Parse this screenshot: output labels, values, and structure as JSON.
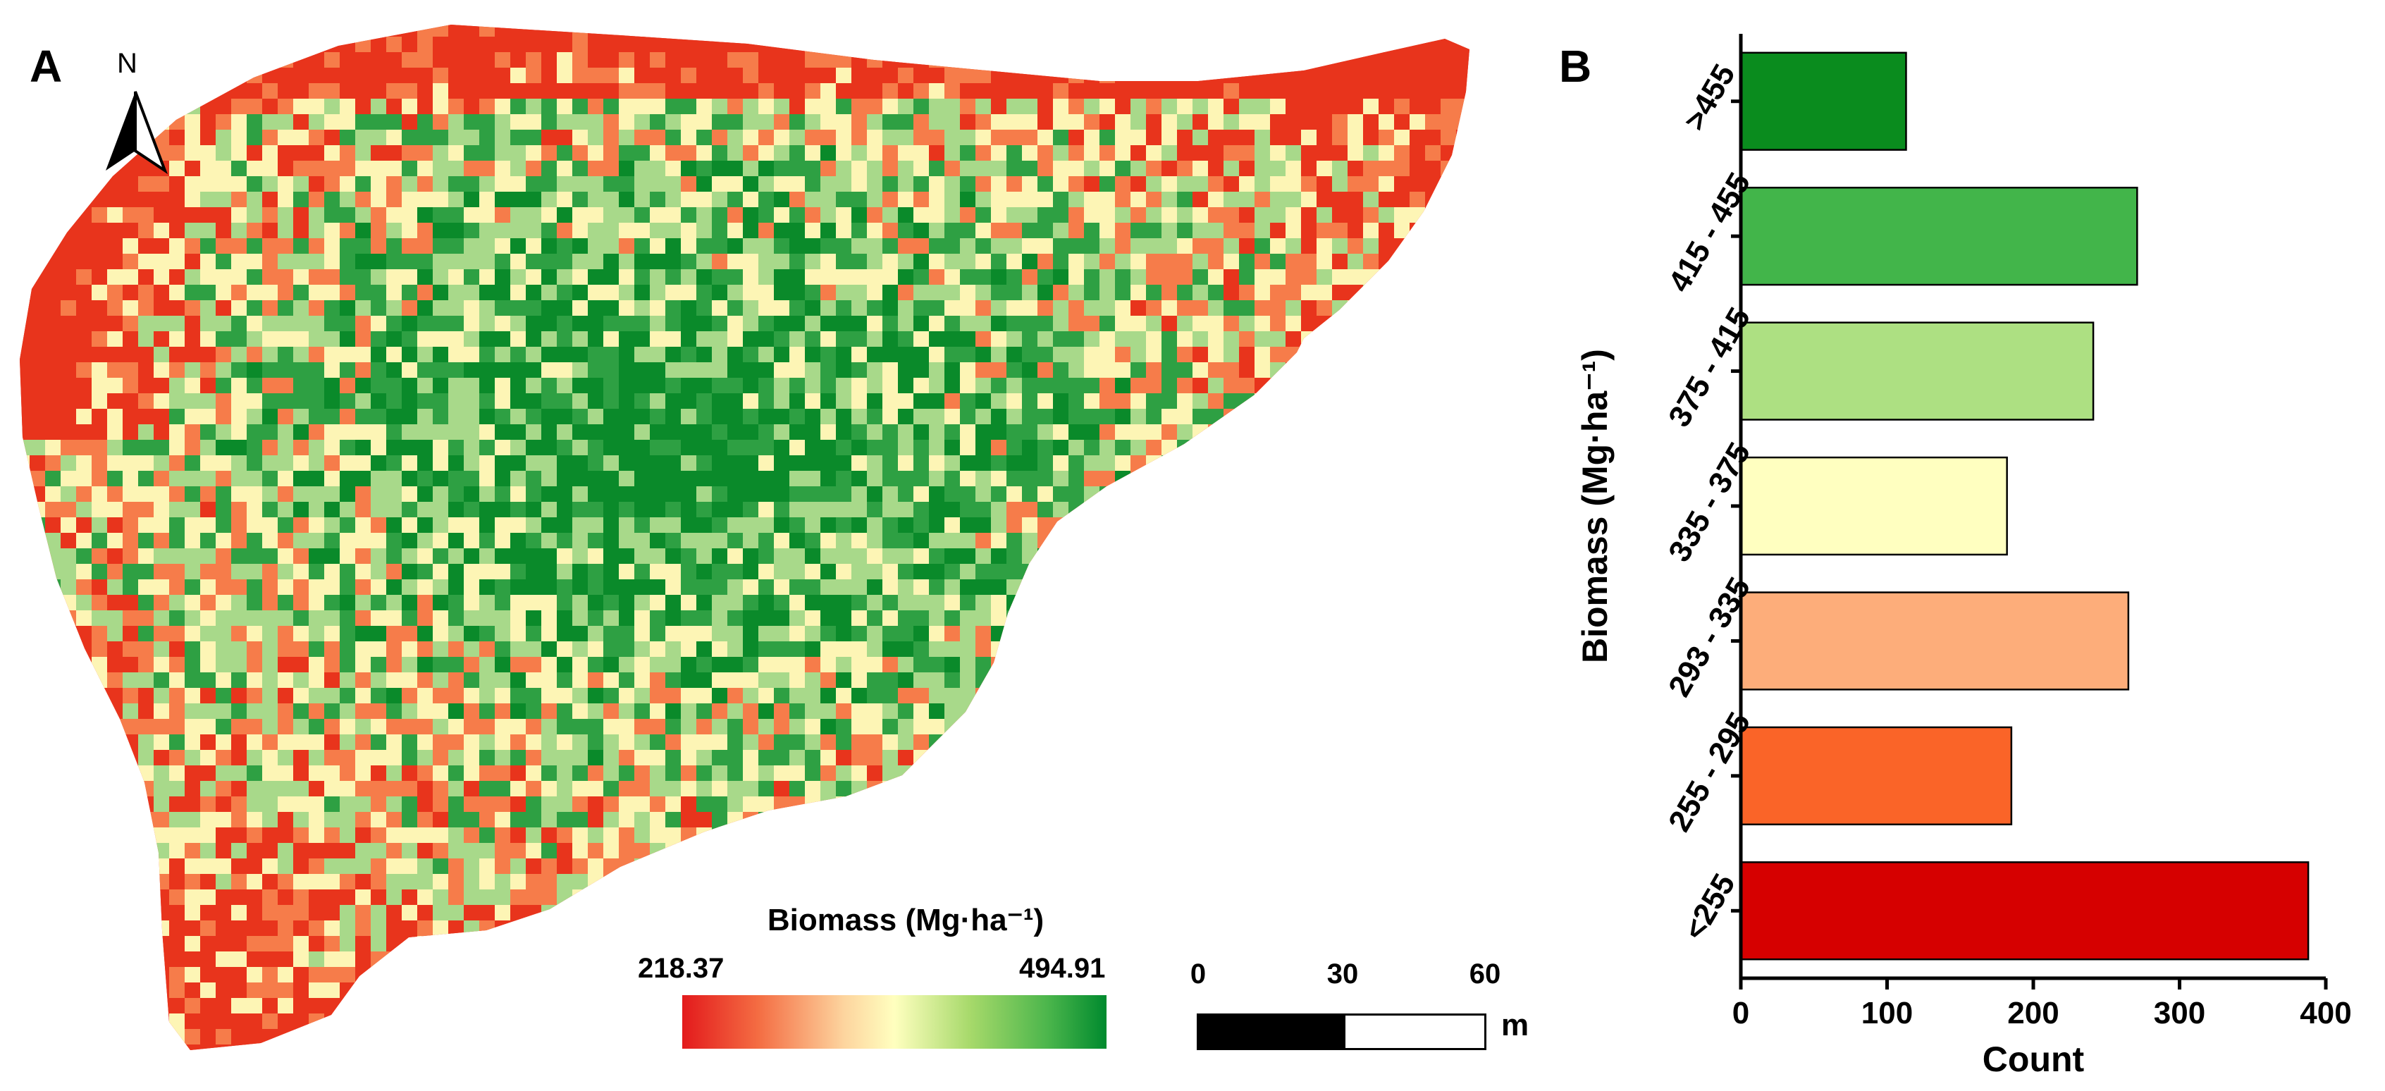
{
  "panels": {
    "a_label": "A",
    "b_label": "B"
  },
  "map": {
    "north_label": "N",
    "legend_title": "Biomass (Mg·ha⁻¹)",
    "legend_min": "218.37",
    "legend_max": "494.91",
    "legend_colors": [
      "#e31a1c",
      "#fc8d59",
      "#fee090",
      "#ffffbf",
      "#a6d96a",
      "#1a9641",
      "#008a2e"
    ],
    "scale_labels": [
      "0",
      "30",
      "60"
    ],
    "scale_unit": "m",
    "palette": {
      "low": "#e8341c",
      "mid_low": "#f67c4a",
      "mid": "#fdf5b5",
      "mid_high": "#a8d98a",
      "high": "#2ea043",
      "very_high": "#0a8a2a"
    }
  },
  "chart_data": {
    "type": "bar",
    "orientation": "horizontal",
    "categories": [
      "<255",
      "255 - 295",
      "293 - 335",
      "335 - 375",
      "375 - 415",
      "415 - 455",
      ">455"
    ],
    "values": [
      388,
      185,
      265,
      182,
      241,
      271,
      113
    ],
    "colors": [
      "#d60000",
      "#fa6428",
      "#fdad7a",
      "#ffffc0",
      "#ade082",
      "#42b54a",
      "#0a8c1e"
    ],
    "xlabel": "Count",
    "ylabel": "Biomass (Mg·ha⁻¹)",
    "xlim": [
      0,
      400
    ],
    "xticks": [
      "0",
      "100",
      "200",
      "300",
      "400"
    ]
  }
}
